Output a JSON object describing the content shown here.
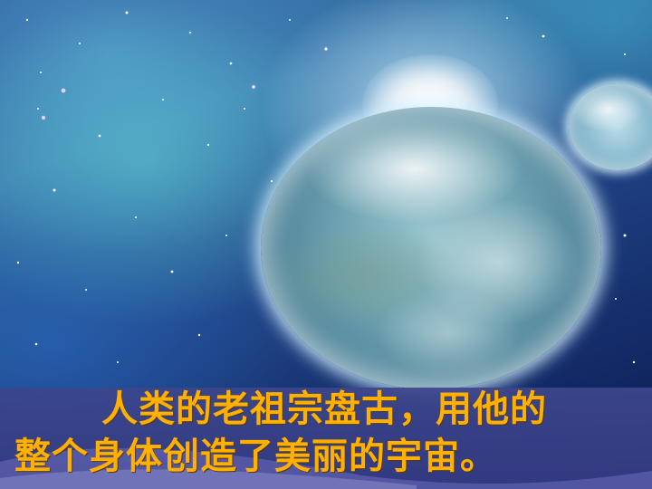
{
  "slide": {
    "caption_line1": "人类的老祖宗盘古，用他的",
    "caption_line2": "整个身体创造了美丽的宇宙。"
  },
  "colors": {
    "caption_text": "#ffb000",
    "caption_bar": "#3c468c",
    "space_bg": "#1e3f80"
  }
}
